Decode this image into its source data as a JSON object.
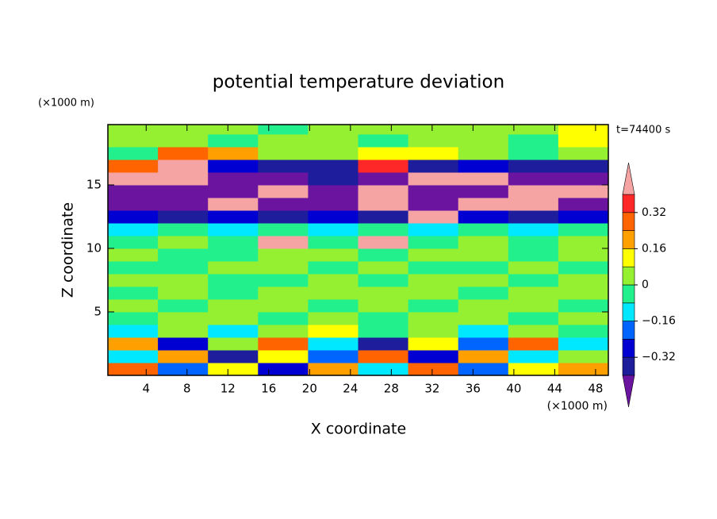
{
  "chart_data": {
    "type": "contour",
    "title": "potential temperature deviation",
    "x_label": "X coordinate",
    "y_label": "Z coordinate",
    "x_unit": "(×1000 m)",
    "y_unit": "(×1000 m)",
    "annotation": "t=74400 s",
    "xlim": [
      0.25,
      49.25
    ],
    "ylim": [
      0,
      19.75
    ],
    "xticks": [
      4,
      8,
      12,
      16,
      20,
      24,
      28,
      32,
      36,
      40,
      44,
      48
    ],
    "yticks": [
      5,
      10,
      15
    ],
    "x": [
      2.7,
      7.6,
      12.5,
      17.4,
      22.3,
      27.2,
      32.1,
      37.0,
      41.9,
      46.8
    ],
    "y": [
      0.5,
      1.5,
      2.5,
      3.5,
      4.5,
      5.5,
      6.5,
      7.5,
      8.5,
      9.5,
      10.5,
      11.5,
      12.5,
      13.5,
      14.5,
      15.5,
      16.5,
      17.5,
      18.5,
      19.5
    ],
    "z": [
      [
        0.3,
        -0.2,
        0.1,
        -0.3,
        0.2,
        -0.1,
        0.3,
        -0.2,
        0.1,
        0.2
      ],
      [
        -0.1,
        0.2,
        -0.35,
        0.1,
        -0.2,
        0.3,
        -0.3,
        0.2,
        -0.1,
        0.05
      ],
      [
        0.2,
        -0.3,
        0.05,
        0.25,
        -0.1,
        -0.35,
        0.1,
        -0.2,
        0.3,
        -0.15
      ],
      [
        -0.1,
        0.05,
        -0.12,
        0.02,
        0.1,
        -0.06,
        0.02,
        -0.1,
        0.05,
        -0.05
      ],
      [
        -0.04,
        0.02,
        0.02,
        -0.04,
        0.02,
        -0.04,
        0.02,
        0.02,
        -0.04,
        0.02
      ],
      [
        0.02,
        -0.04,
        0.02,
        0.02,
        -0.04,
        0.02,
        -0.04,
        0.02,
        0.02,
        -0.04
      ],
      [
        -0.04,
        0.02,
        -0.04,
        0.02,
        0.02,
        0.02,
        0.02,
        -0.04,
        0.02,
        0.02
      ],
      [
        0.02,
        0.02,
        -0.04,
        -0.04,
        0.02,
        -0.04,
        0.02,
        0.02,
        -0.04,
        0.02
      ],
      [
        -0.04,
        -0.04,
        0.02,
        0.02,
        -0.04,
        0.02,
        -0.04,
        -0.04,
        0.02,
        -0.04
      ],
      [
        0.02,
        -0.04,
        -0.04,
        0.02,
        0.02,
        -0.04,
        0.02,
        0.02,
        -0.04,
        0.02
      ],
      [
        -0.04,
        0.02,
        -0.04,
        0.45,
        -0.04,
        0.45,
        -0.04,
        0.02,
        -0.04,
        0.02
      ],
      [
        -0.12,
        -0.06,
        -0.12,
        -0.06,
        -0.12,
        -0.06,
        -0.12,
        -0.06,
        -0.12,
        -0.06
      ],
      [
        -0.3,
        -0.35,
        -0.3,
        -0.35,
        -0.3,
        -0.35,
        0.45,
        -0.3,
        -0.35,
        -0.3
      ],
      [
        -0.45,
        -0.45,
        0.45,
        -0.45,
        -0.45,
        0.45,
        -0.45,
        0.45,
        0.45,
        -0.45
      ],
      [
        -0.45,
        -0.45,
        -0.45,
        0.45,
        -0.45,
        0.45,
        -0.45,
        -0.45,
        0.45,
        0.45
      ],
      [
        0.45,
        0.45,
        -0.45,
        -0.45,
        -0.35,
        -0.45,
        0.45,
        0.45,
        -0.45,
        -0.45
      ],
      [
        0.3,
        0.45,
        -0.3,
        -0.35,
        -0.35,
        0.35,
        -0.35,
        -0.3,
        -0.35,
        -0.35
      ],
      [
        -0.04,
        0.25,
        0.2,
        0.02,
        0.02,
        0.15,
        0.12,
        0.02,
        -0.04,
        0.02
      ],
      [
        0.02,
        0.02,
        -0.04,
        0.02,
        0.02,
        -0.04,
        0.02,
        0.02,
        -0.04,
        0.08
      ],
      [
        0.02,
        0.02,
        0.02,
        -0.04,
        0.02,
        0.02,
        0.02,
        0.02,
        0.02,
        0.1
      ]
    ],
    "levels": [
      -0.4,
      -0.32,
      -0.24,
      -0.16,
      -0.08,
      0,
      0.08,
      0.16,
      0.24,
      0.32,
      0.4
    ],
    "colors": [
      "#6a14a0",
      "#1e1e9c",
      "#0000d2",
      "#0064ff",
      "#00e8ff",
      "#22f08c",
      "#96f032",
      "#ffff00",
      "#ffa000",
      "#ff6400",
      "#ff2828",
      "#f5a3a3"
    ],
    "colorbar_ticks": [
      {
        "value": -0.32,
        "label": "−0.32"
      },
      {
        "value": -0.16,
        "label": "−0.16"
      },
      0,
      0.16,
      0.32
    ]
  }
}
